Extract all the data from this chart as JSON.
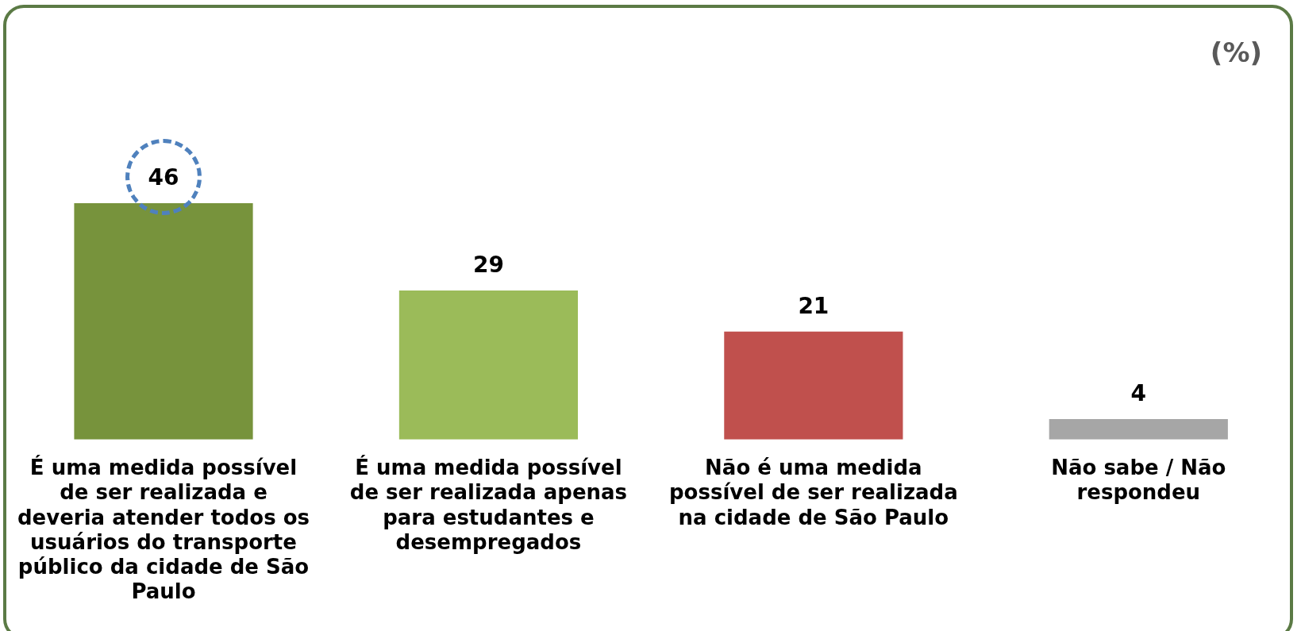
{
  "chart_data": {
    "type": "bar",
    "categories": [
      "É uma medida possível de ser realizada e deveria atender todos os usuários do transporte público da cidade de São Paulo",
      "É uma medida possível de ser realizada apenas para estudantes e desempregados",
      "Não é uma medida possível de ser realizada na cidade de São Paulo",
      "Não sabe / Não respondeu"
    ],
    "values": [
      46,
      29,
      21,
      4
    ],
    "colors": [
      "#77933c",
      "#9bbb59",
      "#c0504d",
      "#a6a6a6"
    ],
    "data_labels": true,
    "grid": false,
    "legend": false,
    "tick_labels": "x",
    "annotations": [
      "(%)"
    ]
  }
}
